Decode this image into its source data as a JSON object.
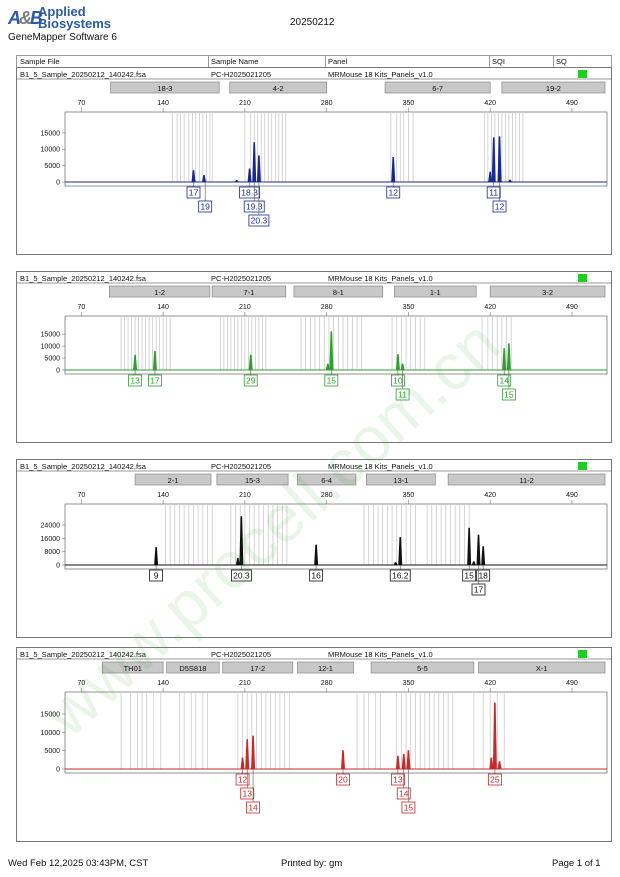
{
  "header": {
    "logo_mark_a": "A",
    "logo_mark_b": "B",
    "brand_line1": "Applied",
    "brand_line2": "Biosystems",
    "software": "GeneMapper Software 6",
    "run_id": "20250212"
  },
  "table_header": {
    "sample_file": "Sample File",
    "sample_name": "Sample Name",
    "panel": "Panel",
    "sqi": "SQI",
    "sq": "SQ"
  },
  "colors": {
    "blue": "#1a2a8c",
    "green": "#2e9e2e",
    "black": "#111111",
    "red": "#c42a2a",
    "status": "#22cc22"
  },
  "watermark": "www.procell.com.cn",
  "footer": {
    "date": "Wed Feb 12,2025 03:43PM, CST",
    "printed_by": "Printed by: gm",
    "page": "Page 1 of 1"
  },
  "chart_data": [
    {
      "type": "line",
      "dye": "blue",
      "sample_file": "B1_5_Sample_20250212_140242.fsa",
      "sample_name": "PC-H2025021205",
      "panel": "MRMouse 18 Kits_Panels_v1.0",
      "xlim": [
        56,
        520
      ],
      "ylim": [
        0,
        18000
      ],
      "x_ticks": [
        70,
        140,
        210,
        280,
        350,
        420,
        490
      ],
      "y_ticks": [
        0,
        5000,
        10000,
        15000
      ],
      "markers": [
        {
          "name": "18-3",
          "range": [
            95,
            188
          ]
        },
        {
          "name": "4-2",
          "range": [
            197,
            280
          ]
        },
        {
          "name": "6-7",
          "range": [
            330,
            420
          ]
        },
        {
          "name": "19-2",
          "range": [
            430,
            530
          ]
        }
      ],
      "bins": [
        148,
        152,
        155,
        158,
        162,
        165,
        168,
        171,
        174,
        177,
        180,
        182,
        210,
        215,
        218,
        221,
        224,
        227,
        230,
        233,
        236,
        239,
        242,
        245,
        335,
        340,
        343,
        346,
        350,
        354,
        415,
        418,
        421,
        424,
        427,
        430,
        433,
        436,
        439,
        442,
        445,
        448
      ],
      "peaks": [
        {
          "x": 166,
          "y": 3500
        },
        {
          "x": 175,
          "y": 2000
        },
        {
          "x": 203,
          "y": 500
        },
        {
          "x": 214,
          "y": 4000
        },
        {
          "x": 218,
          "y": 12000
        },
        {
          "x": 222,
          "y": 8000
        },
        {
          "x": 337,
          "y": 7500
        },
        {
          "x": 420,
          "y": 3000
        },
        {
          "x": 423,
          "y": 13500
        },
        {
          "x": 428,
          "y": 13800
        },
        {
          "x": 437,
          "y": 600
        }
      ],
      "alleles": [
        {
          "label": "17",
          "x": 166,
          "row": 0
        },
        {
          "label": "19",
          "x": 176,
          "row": 1
        },
        {
          "label": "18.3",
          "x": 214,
          "row": 0
        },
        {
          "label": "19.3",
          "x": 218,
          "row": 1
        },
        {
          "label": "20.3",
          "x": 222,
          "row": 2
        },
        {
          "label": "12",
          "x": 337,
          "row": 0
        },
        {
          "label": "11",
          "x": 423,
          "row": 0
        },
        {
          "label": "12",
          "x": 428,
          "row": 1
        }
      ]
    },
    {
      "type": "line",
      "dye": "green",
      "sample_file": "B1_5_Sample_20250212_140242.fsa",
      "sample_name": "PC-H2025021205",
      "panel": "MRMouse 18 Kits_Panels_v1.0",
      "xlim": [
        56,
        520
      ],
      "ylim": [
        0,
        18000
      ],
      "x_ticks": [
        70,
        140,
        210,
        280,
        350,
        420,
        490
      ],
      "y_ticks": [
        0,
        5000,
        10000,
        15000
      ],
      "markers": [
        {
          "name": "1-2",
          "range": [
            94,
            180
          ]
        },
        {
          "name": "7-1",
          "range": [
            182,
            245
          ]
        },
        {
          "name": "8-1",
          "range": [
            252,
            328
          ]
        },
        {
          "name": "1-1",
          "range": [
            338,
            408
          ]
        },
        {
          "name": "3-2",
          "range": [
            420,
            530
          ]
        }
      ],
      "bins": [
        104,
        107,
        110,
        113,
        116,
        119,
        122,
        125,
        128,
        131,
        134,
        137,
        140,
        143,
        146,
        189,
        192,
        195,
        198,
        201,
        204,
        207,
        210,
        213,
        216,
        219,
        222,
        225,
        228,
        258,
        262,
        266,
        270,
        274,
        278,
        282,
        286,
        290,
        294,
        298,
        302,
        306,
        310,
        336,
        340,
        344,
        348,
        352,
        356,
        360,
        364,
        413,
        418,
        422,
        426,
        430,
        434,
        438
      ],
      "peaks": [
        {
          "x": 116,
          "y": 6200
        },
        {
          "x": 133,
          "y": 7800
        },
        {
          "x": 215,
          "y": 6200
        },
        {
          "x": 284,
          "y": 16000
        },
        {
          "x": 281,
          "y": 2500
        },
        {
          "x": 341,
          "y": 6500
        },
        {
          "x": 345,
          "y": 2500
        },
        {
          "x": 432,
          "y": 9000
        },
        {
          "x": 436,
          "y": 11000
        }
      ],
      "alleles": [
        {
          "label": "13",
          "x": 116,
          "row": 0
        },
        {
          "label": "17",
          "x": 133,
          "row": 0
        },
        {
          "label": "29",
          "x": 215,
          "row": 0
        },
        {
          "label": "15",
          "x": 284,
          "row": 0
        },
        {
          "label": "10",
          "x": 341,
          "row": 0
        },
        {
          "label": "11",
          "x": 345,
          "row": 1
        },
        {
          "label": "14",
          "x": 432,
          "row": 0
        },
        {
          "label": "15",
          "x": 436,
          "row": 1
        }
      ]
    },
    {
      "type": "line",
      "dye": "black",
      "sample_file": "B1_5_Sample_20250212_140242.fsa",
      "sample_name": "PC-H2025021205",
      "panel": "MRMouse 18 Kits_Panels_v1.0",
      "xlim": [
        56,
        520
      ],
      "ylim": [
        0,
        30000
      ],
      "x_ticks": [
        70,
        140,
        210,
        280,
        350,
        420,
        490
      ],
      "y_ticks": [
        0,
        8000,
        16000,
        24000
      ],
      "markers": [
        {
          "name": "2-1",
          "range": [
            116,
            181
          ]
        },
        {
          "name": "15-3",
          "range": [
            186,
            247
          ]
        },
        {
          "name": "6-4",
          "range": [
            255,
            305
          ]
        },
        {
          "name": "13-1",
          "range": [
            314,
            373
          ]
        },
        {
          "name": "11-2",
          "range": [
            384,
            528
          ]
        }
      ],
      "bins": [
        142,
        146,
        150,
        154,
        158,
        162,
        166,
        170,
        174,
        178,
        182,
        198,
        202,
        206,
        210,
        214,
        218,
        222,
        226,
        230,
        234,
        238,
        242,
        246,
        312,
        316,
        320,
        324,
        328,
        332,
        336,
        340,
        344,
        348,
        352,
        356,
        366,
        370,
        374,
        378,
        382,
        386,
        390,
        394,
        398,
        402
      ],
      "peaks": [
        {
          "x": 134,
          "y": 10500
        },
        {
          "x": 204,
          "y": 4000
        },
        {
          "x": 207,
          "y": 29000
        },
        {
          "x": 271,
          "y": 12000
        },
        {
          "x": 339,
          "y": 1500
        },
        {
          "x": 343,
          "y": 16500
        },
        {
          "x": 402,
          "y": 22000
        },
        {
          "x": 406,
          "y": 2000
        },
        {
          "x": 410,
          "y": 18000
        },
        {
          "x": 414,
          "y": 11000
        }
      ],
      "alleles": [
        {
          "label": "9",
          "x": 134,
          "row": 0
        },
        {
          "label": "20.3",
          "x": 207,
          "row": 0
        },
        {
          "label": "16",
          "x": 271,
          "row": 0
        },
        {
          "label": "16.2",
          "x": 343,
          "row": 0
        },
        {
          "label": "15",
          "x": 402,
          "row": 0
        },
        {
          "label": "18",
          "x": 414,
          "row": 0
        },
        {
          "label": "17",
          "x": 410,
          "row": 1
        }
      ]
    },
    {
      "type": "line",
      "dye": "red",
      "sample_file": "B1_5_Sample_20250212_140242.fsa",
      "sample_name": "PC-H2025021205",
      "panel": "MRMouse 18 Kits_Panels_v1.0",
      "xlim": [
        56,
        520
      ],
      "ylim": [
        0,
        18000
      ],
      "x_ticks": [
        70,
        140,
        210,
        280,
        350,
        420,
        490
      ],
      "y_ticks": [
        0,
        5000,
        10000,
        15000
      ],
      "markers": [
        {
          "name": "TH01",
          "range": [
            88,
            140
          ]
        },
        {
          "name": "D5S818",
          "range": [
            143,
            188
          ]
        },
        {
          "name": "17-2",
          "range": [
            191,
            251
          ]
        },
        {
          "name": "12-1",
          "range": [
            255,
            303
          ]
        },
        {
          "name": "5-5",
          "range": [
            318,
            406
          ]
        },
        {
          "name": "X-1",
          "range": [
            410,
            536
          ]
        }
      ],
      "bins": [
        104,
        112,
        118,
        122,
        126,
        132,
        138,
        154,
        158,
        164,
        168,
        174,
        178,
        204,
        208,
        212,
        216,
        220,
        224,
        228,
        232,
        236,
        240,
        244,
        248,
        306,
        312,
        316,
        322,
        326,
        340,
        344,
        348,
        352,
        356,
        360,
        364,
        368,
        372,
        376,
        380,
        384,
        388,
        406,
        414,
        420,
        426,
        432
      ],
      "peaks": [
        {
          "x": 208,
          "y": 3000
        },
        {
          "x": 212,
          "y": 8000
        },
        {
          "x": 217,
          "y": 9000
        },
        {
          "x": 294,
          "y": 5000
        },
        {
          "x": 341,
          "y": 3500
        },
        {
          "x": 346,
          "y": 4000
        },
        {
          "x": 350,
          "y": 5000
        },
        {
          "x": 421,
          "y": 3000
        },
        {
          "x": 424,
          "y": 18000
        },
        {
          "x": 428,
          "y": 2000
        }
      ],
      "alleles": [
        {
          "label": "12",
          "x": 208,
          "row": 0
        },
        {
          "label": "13",
          "x": 212,
          "row": 1
        },
        {
          "label": "14",
          "x": 217,
          "row": 2
        },
        {
          "label": "20",
          "x": 294,
          "row": 0
        },
        {
          "label": "13",
          "x": 341,
          "row": 0
        },
        {
          "label": "14",
          "x": 346,
          "row": 1
        },
        {
          "label": "15",
          "x": 350,
          "row": 2
        },
        {
          "label": "25",
          "x": 424,
          "row": 0
        }
      ]
    }
  ]
}
